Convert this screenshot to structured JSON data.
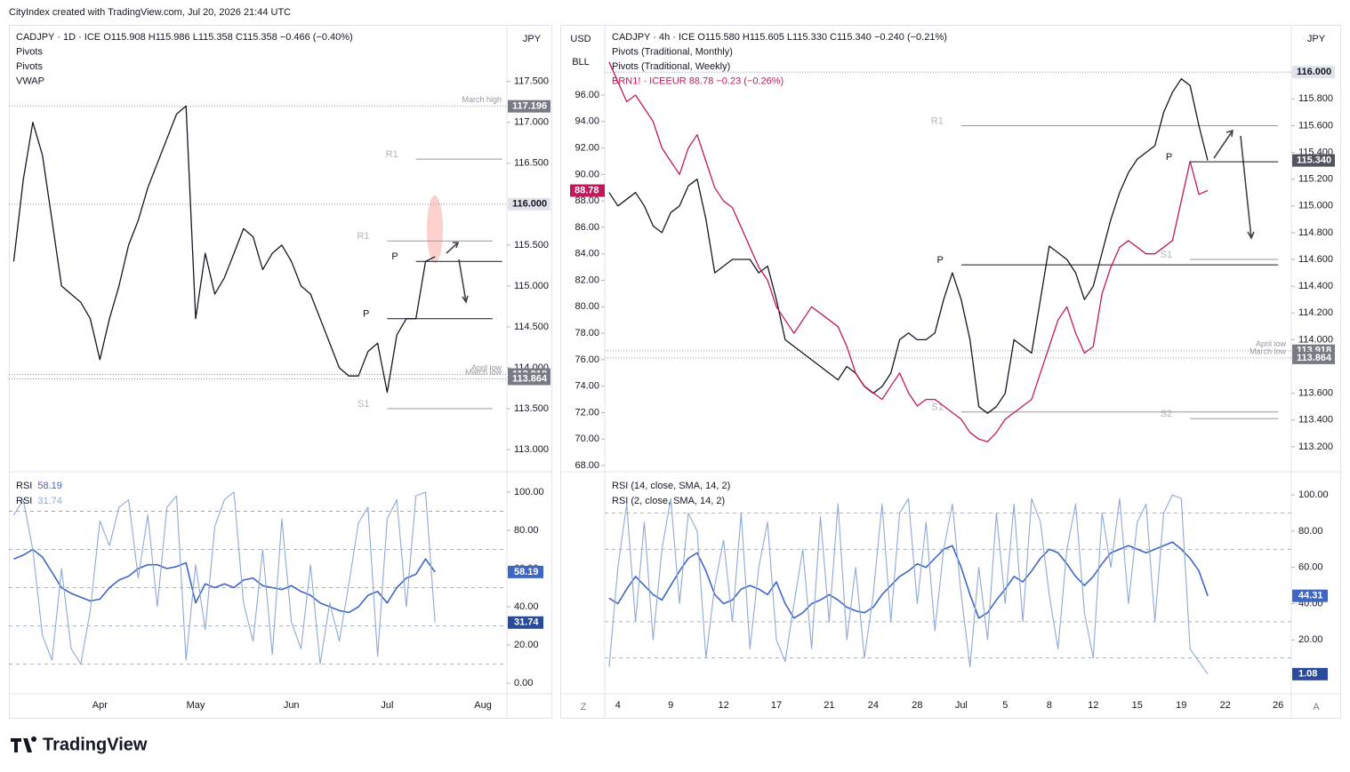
{
  "header": {
    "title": "CityIndex created with TradingView.com, Jul 20, 2026 21:44 UTC"
  },
  "footer": {
    "logo": "TradingView",
    "left_button": "Z",
    "right_button": "A"
  },
  "chart_data": [
    {
      "type": "line",
      "axis_title": "JPY",
      "indicators": [
        "Pivots",
        "Pivots",
        "VWAP"
      ],
      "categories": [
        null,
        null,
        null,
        null,
        null,
        null,
        null,
        null,
        null,
        "Apr",
        null,
        null,
        null,
        null,
        null,
        null,
        null,
        null,
        null,
        "May",
        null,
        null,
        null,
        null,
        null,
        null,
        null,
        null,
        null,
        "Jun",
        null,
        null,
        null,
        null,
        null,
        null,
        null,
        null,
        null,
        "Jul",
        null,
        null,
        null,
        null,
        null,
        null,
        null,
        null,
        null,
        "Aug",
        null,
        null
      ],
      "series": [
        {
          "name": "CADJPY · 1D · ICE  O115.908  H115.986  L115.358  C115.358  −0.466 (−0.40%)",
          "color": "#131722",
          "values": [
            115.3,
            116.3,
            117.0,
            116.6,
            115.8,
            115.0,
            114.9,
            114.8,
            114.6,
            114.1,
            114.6,
            115.0,
            115.5,
            115.8,
            116.2,
            116.5,
            116.8,
            117.1,
            117.2,
            114.6,
            115.4,
            114.9,
            115.1,
            115.4,
            115.7,
            115.6,
            115.2,
            115.4,
            115.5,
            115.3,
            115.0,
            114.9,
            114.6,
            114.3,
            114.0,
            113.9,
            113.9,
            114.2,
            114.3,
            113.7,
            114.4,
            114.6,
            114.6,
            115.3,
            115.358,
            null,
            null,
            null,
            null,
            null,
            null,
            null
          ]
        }
      ],
      "ylim": [
        112.74,
        118.17
      ],
      "yticks": [
        {
          "value": 117.5,
          "label": "117.500"
        },
        {
          "value": 117.0,
          "label": "117.000"
        },
        {
          "value": 116.5,
          "label": "116.500"
        },
        {
          "value": 115.5,
          "label": "115.500"
        },
        {
          "value": 115.0,
          "label": "115.000"
        },
        {
          "value": 114.5,
          "label": "114.500"
        },
        {
          "value": 114.0,
          "label": "114.000"
        },
        {
          "value": 113.5,
          "label": "113.500"
        },
        {
          "value": 113.0,
          "label": "113.000"
        }
      ],
      "references": [
        {
          "name": "March high",
          "value": 117.196,
          "label": "117.196"
        },
        {
          "value": 116.0,
          "label": "116.000"
        },
        {
          "name": "April low",
          "value": 113.918,
          "label": "113.918"
        },
        {
          "name": "March low",
          "value": 113.864,
          "label": "113.864"
        }
      ],
      "pivots_monthly": [
        {
          "name": "R1",
          "value": 115.55
        },
        {
          "name": "P",
          "value": 114.6
        },
        {
          "name": "S1",
          "value": 113.5
        }
      ],
      "pivots_weekly": [
        {
          "name": "R1",
          "value": 116.55
        },
        {
          "name": "P",
          "value": 115.3
        }
      ]
    },
    {
      "type": "line",
      "series": [
        {
          "name": "RSI",
          "color": "#3f66c4",
          "values": [
            65,
            67,
            70,
            66,
            58,
            50,
            47,
            45,
            43,
            44,
            50,
            54,
            56,
            60,
            62,
            62,
            60,
            61,
            63,
            42,
            52,
            50,
            52,
            50,
            54,
            55,
            51,
            50,
            49,
            51,
            48,
            46,
            42,
            40,
            38,
            37,
            40,
            46,
            48,
            42,
            50,
            55,
            57,
            65,
            58.19,
            null,
            null,
            null,
            null,
            null,
            null,
            null
          ]
        },
        {
          "name": "RSI",
          "color": "#8fa8d6",
          "values": [
            88,
            96,
            70,
            25,
            12,
            60,
            18,
            10,
            38,
            85,
            72,
            92,
            96,
            55,
            88,
            40,
            92,
            98,
            12,
            62,
            28,
            82,
            96,
            100,
            42,
            22,
            70,
            15,
            86,
            32,
            18,
            62,
            10,
            42,
            22,
            52,
            84,
            92,
            14,
            86,
            96,
            40,
            98,
            100,
            31.74,
            null,
            null,
            null,
            null,
            null,
            null,
            null
          ]
        }
      ],
      "ylim": [
        -5.1,
        110.2
      ],
      "yticks": [
        {
          "value": 100,
          "label": "100.00"
        },
        {
          "value": 80,
          "label": "80.00"
        },
        {
          "value": 60,
          "label": "60.00"
        },
        {
          "value": 40,
          "label": "40.00"
        },
        {
          "value": 20,
          "label": "20.00"
        },
        {
          "value": 0,
          "label": "0.00"
        }
      ],
      "levels": [
        90,
        70,
        50,
        30,
        10
      ]
    },
    {
      "type": "line",
      "axis_title": "JPY",
      "y2_labels": [
        "USD",
        "BLL"
      ],
      "indicators": [
        "Pivots (Traditional, Monthly)",
        "Pivots (Traditional, Weekly)"
      ],
      "categories": [
        null,
        "4",
        null,
        null,
        null,
        null,
        null,
        "9",
        null,
        null,
        null,
        null,
        null,
        "12",
        null,
        null,
        null,
        null,
        null,
        "17",
        null,
        null,
        null,
        null,
        null,
        "21",
        null,
        null,
        null,
        null,
        "24",
        null,
        null,
        null,
        null,
        "28",
        null,
        null,
        null,
        null,
        "Jul",
        null,
        null,
        null,
        null,
        "5",
        null,
        null,
        null,
        null,
        "8",
        null,
        null,
        null,
        null,
        "12",
        null,
        null,
        null,
        null,
        "15",
        null,
        null,
        null,
        null,
        "19",
        null,
        null,
        null,
        null,
        "22",
        null,
        null,
        null,
        null,
        null,
        "26",
        null
      ],
      "series": [
        {
          "name": "CADJPY · 4h · ICE  O115.580  H115.605  L115.330  C115.340  −0.240 (−0.21%)",
          "color": "#131722",
          "values": [
            115.1,
            115.0,
            115.05,
            115.1,
            115.0,
            114.85,
            114.8,
            114.95,
            115.0,
            115.15,
            115.2,
            114.9,
            114.5,
            114.55,
            114.6,
            114.6,
            114.6,
            114.5,
            114.55,
            114.3,
            114.0,
            113.95,
            113.9,
            113.85,
            113.8,
            113.75,
            113.7,
            113.8,
            113.75,
            113.65,
            113.6,
            113.65,
            113.75,
            114.0,
            114.05,
            114.0,
            114.0,
            114.05,
            114.3,
            114.5,
            114.3,
            114.0,
            113.5,
            113.45,
            113.5,
            113.6,
            114.0,
            113.95,
            113.9,
            114.3,
            114.7,
            114.65,
            114.6,
            114.5,
            114.3,
            114.4,
            114.65,
            114.9,
            115.1,
            115.25,
            115.35,
            115.4,
            115.45,
            115.7,
            115.85,
            115.95,
            115.9,
            115.6,
            115.34,
            null,
            null,
            null,
            null,
            null,
            null,
            null,
            null,
            null
          ]
        },
        {
          "name": "BRN1! · ICEEUR  88.78  −0.23 (−0.26%)",
          "color": "#c2185b",
          "axis": "y2",
          "values": [
            98.5,
            97,
            95.5,
            96,
            95,
            94,
            92,
            91,
            90,
            92,
            93,
            91,
            89,
            88,
            87.5,
            86,
            84.5,
            83,
            82,
            80,
            79,
            78,
            79,
            80,
            79.5,
            79,
            78.5,
            77,
            75,
            74,
            73.5,
            73,
            74,
            75,
            73.5,
            72.5,
            73,
            73,
            72.5,
            72,
            71.5,
            70.5,
            70,
            69.8,
            70.5,
            71.5,
            72,
            72.5,
            73,
            75,
            77,
            79,
            80,
            78,
            76.5,
            77,
            81,
            83,
            84.5,
            85,
            84.5,
            84,
            84,
            84.5,
            85,
            88,
            91,
            88.5,
            88.78,
            null,
            null,
            null,
            null,
            null,
            null,
            null,
            null,
            null
          ]
        }
      ],
      "ylim": [
        113.02,
        116.34
      ],
      "yticks": [
        {
          "value": 115.8,
          "label": "115.800"
        },
        {
          "value": 115.6,
          "label": "115.600"
        },
        {
          "value": 115.4,
          "label": "115.400"
        },
        {
          "value": 115.2,
          "label": "115.200"
        },
        {
          "value": 115.0,
          "label": "115.000"
        },
        {
          "value": 114.8,
          "label": "114.800"
        },
        {
          "value": 114.6,
          "label": "114.600"
        },
        {
          "value": 114.4,
          "label": "114.400"
        },
        {
          "value": 114.2,
          "label": "114.200"
        },
        {
          "value": 114.0,
          "label": "114.000"
        },
        {
          "value": 113.6,
          "label": "113.600"
        },
        {
          "value": 113.4,
          "label": "113.400"
        },
        {
          "value": 113.2,
          "label": "113.200"
        }
      ],
      "y2lim": [
        67.6,
        101.17
      ],
      "y2ticks": [
        {
          "value": 96,
          "label": "96.00"
        },
        {
          "value": 94,
          "label": "94.00"
        },
        {
          "value": 92,
          "label": "92.00"
        },
        {
          "value": 90,
          "label": "90.00"
        },
        {
          "value": 88,
          "label": "88.00"
        },
        {
          "value": 86,
          "label": "86.00"
        },
        {
          "value": 84,
          "label": "84.00"
        },
        {
          "value": 82,
          "label": "82.00"
        },
        {
          "value": 80,
          "label": "80.00"
        },
        {
          "value": 78,
          "label": "78.00"
        },
        {
          "value": 76,
          "label": "76.00"
        },
        {
          "value": 74,
          "label": "74.00"
        },
        {
          "value": 72,
          "label": "72.00"
        },
        {
          "value": 70,
          "label": "70.00"
        },
        {
          "value": 68,
          "label": "68.00"
        }
      ],
      "references": [
        {
          "value": 116.0,
          "label": "116.000"
        },
        {
          "name": "April low",
          "value": 113.918,
          "label": "113.918"
        },
        {
          "name": "March low",
          "value": 113.864,
          "label": "113.864"
        }
      ],
      "badges": [
        {
          "value": 115.34,
          "label": "115.340"
        }
      ],
      "pivots_monthly": [
        {
          "name": "R1",
          "value": 115.6
        },
        {
          "name": "P",
          "value": 114.56
        },
        {
          "name": "S1",
          "value": 113.46
        }
      ],
      "pivots_weekly": [
        {
          "name": "P",
          "value": 115.33
        },
        {
          "name": "S1",
          "value": 114.6
        },
        {
          "name": "S2",
          "value": 113.41
        }
      ]
    },
    {
      "type": "line",
      "series": [
        {
          "name": "RSI (14, close, SMA, 14, 2)",
          "color": "#3f66c4",
          "values": [
            43,
            40,
            48,
            55,
            50,
            45,
            42,
            50,
            58,
            65,
            68,
            58,
            45,
            40,
            42,
            48,
            50,
            48,
            45,
            52,
            40,
            32,
            35,
            40,
            42,
            45,
            42,
            38,
            36,
            35,
            38,
            45,
            50,
            55,
            58,
            62,
            60,
            65,
            70,
            72,
            60,
            45,
            32,
            35,
            42,
            48,
            55,
            52,
            58,
            65,
            70,
            68,
            62,
            55,
            50,
            55,
            62,
            68,
            70,
            72,
            70,
            68,
            70,
            72,
            74,
            70,
            65,
            58,
            44.31,
            null,
            null,
            null,
            null,
            null,
            null,
            null,
            null,
            null
          ]
        },
        {
          "name": "RSI (2, close, SMA, 14, 2)",
          "color": "#8fa8d6",
          "values": [
            5,
            60,
            95,
            30,
            85,
            20,
            70,
            98,
            40,
            90,
            80,
            10,
            50,
            75,
            30,
            90,
            15,
            60,
            85,
            20,
            8,
            40,
            70,
            15,
            88,
            30,
            95,
            20,
            60,
            10,
            45,
            95,
            30,
            90,
            98,
            40,
            85,
            25,
            70,
            95,
            45,
            5,
            60,
            20,
            90,
            40,
            95,
            30,
            98,
            85,
            45,
            15,
            70,
            95,
            35,
            10,
            90,
            60,
            98,
            40,
            85,
            95,
            30,
            90,
            100,
            98,
            15,
            8,
            1.08,
            null,
            null,
            null,
            null,
            null,
            null,
            null,
            null,
            null
          ]
        }
      ],
      "ylim": [
        -9.3,
        112.3
      ],
      "yticks": [
        {
          "value": 100,
          "label": "100.00"
        },
        {
          "value": 80,
          "label": "80.00"
        },
        {
          "value": 60,
          "label": "60.00"
        },
        {
          "value": 40,
          "label": "40.00"
        },
        {
          "value": 20,
          "label": "20.00"
        }
      ],
      "levels": [
        90,
        70,
        30,
        10
      ]
    }
  ]
}
